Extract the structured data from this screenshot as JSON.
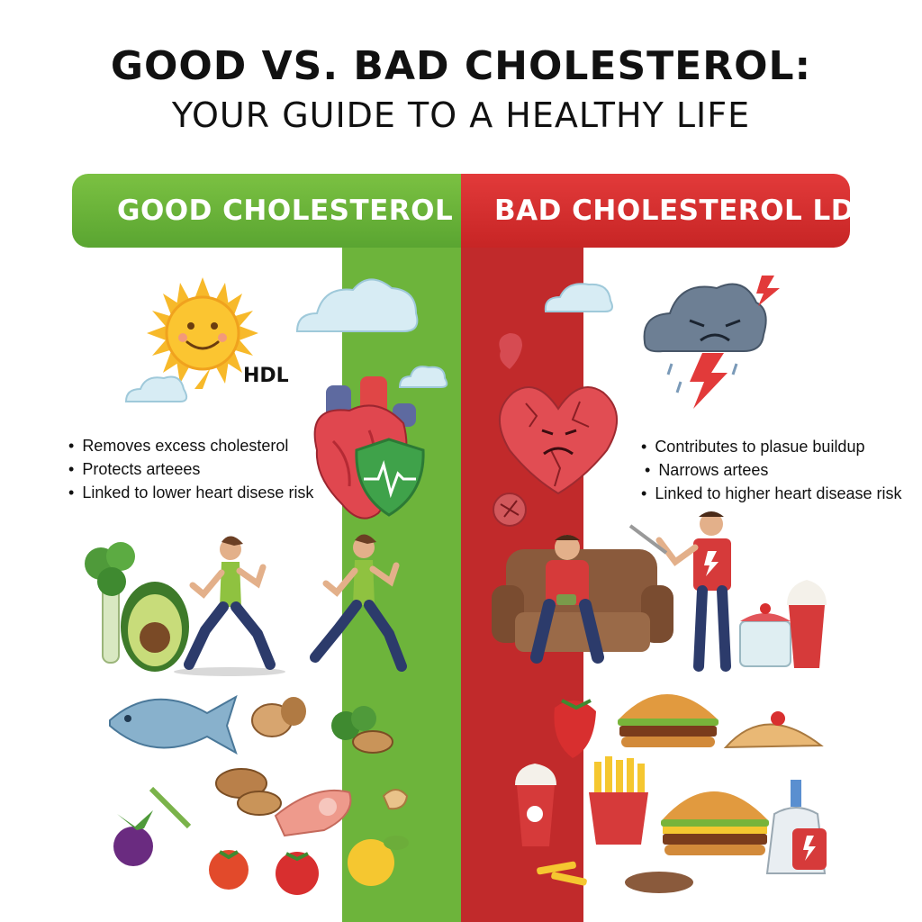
{
  "header": {
    "title": "GOOD VS. BAD CHOLESTEROL:",
    "subtitle": "YOUR GUIDE TO A HEALTHY LIFE"
  },
  "good": {
    "label": "GOOD CHOLESTEROL",
    "tag": "HDL",
    "color": "#6db43b",
    "bullets": [
      "Removes excess cholesterol",
      "Protects arteees",
      "Linked to lower heart disese risk"
    ],
    "icons": [
      "sun-icon",
      "cloud-icon",
      "healthy-heart-icon",
      "shield-pulse-icon",
      "runner-icon",
      "broccoli-icon",
      "avocado-icon",
      "fish-icon",
      "nuts-icon",
      "tomato-icon",
      "salmon-icon",
      "eggplant-icon"
    ]
  },
  "bad": {
    "label": "BAD CHOLESTEROL LDL",
    "color": "#c12a2b",
    "bullets": [
      "Contributes to plasue buildup",
      "Narrows artees",
      "Linked to higher heart disease risk"
    ],
    "icons": [
      "storm-cloud-icon",
      "lightning-icon",
      "cracked-heart-icon",
      "couch-person-icon",
      "angry-person-icon",
      "burger-icon",
      "fries-icon",
      "soda-icon",
      "cake-icon",
      "sauce-bottle-icon",
      "pastry-icon"
    ]
  }
}
